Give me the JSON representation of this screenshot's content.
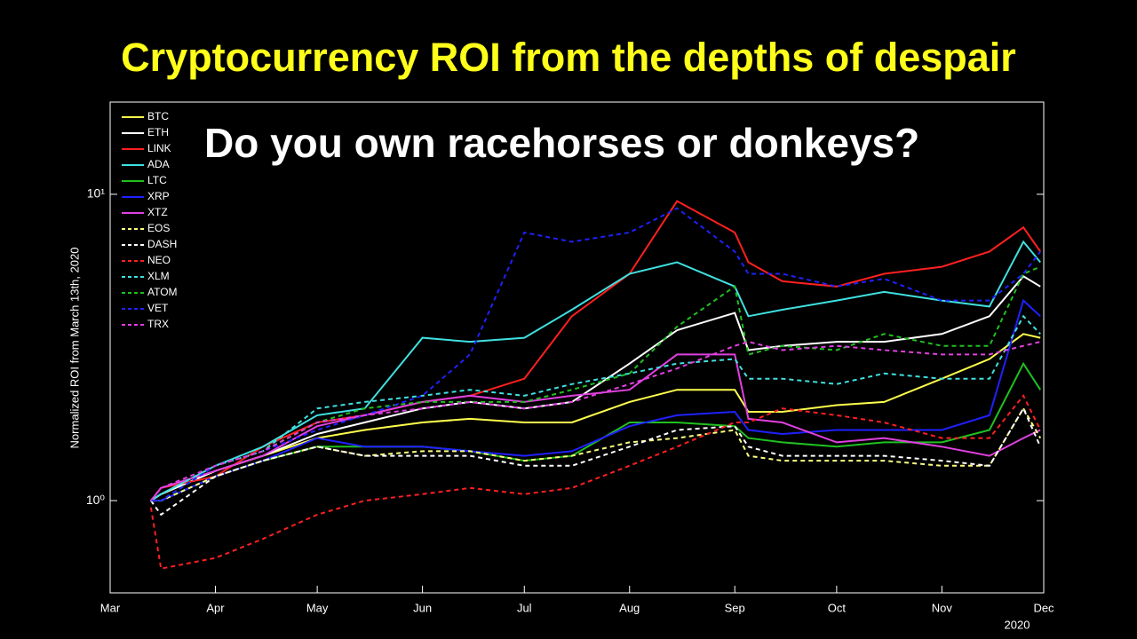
{
  "chart_data": {
    "type": "line",
    "title": "Cryptocurrency ROI from the depths of despair",
    "annotation": "Do you own racehorses or donkeys?",
    "ylabel": "Normalized ROI from March 13th, 2020",
    "xlabel_year": "2020",
    "log_scale": true,
    "legend": "upper left",
    "x": [
      "2020-03-13",
      "2020-03-16",
      "2020-04-01",
      "2020-04-15",
      "2020-05-01",
      "2020-05-15",
      "2020-06-01",
      "2020-06-15",
      "2020-07-01",
      "2020-07-15",
      "2020-08-01",
      "2020-08-15",
      "2020-09-01",
      "2020-09-05",
      "2020-09-15",
      "2020-10-01",
      "2020-10-15",
      "2020-11-01",
      "2020-11-15",
      "2020-11-25",
      "2020-11-30"
    ],
    "xlim": [
      "2020-03-01",
      "2020-12-01"
    ],
    "xticks": [
      {
        "value": "2020-03-01",
        "label": "Mar"
      },
      {
        "value": "2020-04-01",
        "label": "Apr"
      },
      {
        "value": "2020-05-01",
        "label": "May"
      },
      {
        "value": "2020-06-01",
        "label": "Jun"
      },
      {
        "value": "2020-07-01",
        "label": "Jul"
      },
      {
        "value": "2020-08-01",
        "label": "Aug"
      },
      {
        "value": "2020-09-01",
        "label": "Sep"
      },
      {
        "value": "2020-10-01",
        "label": "Oct"
      },
      {
        "value": "2020-11-01",
        "label": "Nov"
      },
      {
        "value": "2020-12-01",
        "label": "Dec"
      }
    ],
    "ylim": [
      0.5,
      20
    ],
    "yticks": [
      {
        "value": 1,
        "label": "10⁰"
      },
      {
        "value": 10,
        "label": "10¹"
      }
    ],
    "series": [
      {
        "name": "BTC",
        "color": "#ffff4d",
        "dashed": false,
        "values": [
          1,
          1.05,
          1.25,
          1.4,
          1.6,
          1.7,
          1.8,
          1.85,
          1.8,
          1.8,
          2.1,
          2.3,
          2.3,
          1.95,
          1.95,
          2.05,
          2.1,
          2.5,
          2.9,
          3.5,
          3.4
        ]
      },
      {
        "name": "ETH",
        "color": "#ffffff",
        "dashed": false,
        "values": [
          1,
          1.05,
          1.25,
          1.4,
          1.65,
          1.8,
          2.0,
          2.1,
          2.0,
          2.1,
          2.8,
          3.6,
          4.1,
          3.1,
          3.2,
          3.3,
          3.3,
          3.5,
          4.0,
          5.4,
          5.0
        ]
      },
      {
        "name": "LINK",
        "color": "#ff2020",
        "dashed": false,
        "values": [
          1,
          1.1,
          1.2,
          1.5,
          1.8,
          1.9,
          2.1,
          2.2,
          2.5,
          4.0,
          5.5,
          9.5,
          7.5,
          6.0,
          5.2,
          5.0,
          5.5,
          5.8,
          6.5,
          7.8,
          6.5
        ]
      },
      {
        "name": "ADA",
        "color": "#40e0e0",
        "dashed": false,
        "values": [
          1,
          1.05,
          1.3,
          1.5,
          1.9,
          2.0,
          3.4,
          3.3,
          3.4,
          4.2,
          5.5,
          6.0,
          5.0,
          4.0,
          4.2,
          4.5,
          4.8,
          4.5,
          4.3,
          7.0,
          6.0
        ]
      },
      {
        "name": "LTC",
        "color": "#20c020",
        "dashed": false,
        "values": [
          1,
          1.0,
          1.2,
          1.35,
          1.5,
          1.5,
          1.5,
          1.45,
          1.35,
          1.4,
          1.8,
          1.8,
          1.75,
          1.6,
          1.55,
          1.5,
          1.55,
          1.55,
          1.7,
          2.8,
          2.3
        ]
      },
      {
        "name": "XRP",
        "color": "#2020ff",
        "dashed": false,
        "values": [
          1,
          1.0,
          1.2,
          1.35,
          1.6,
          1.5,
          1.5,
          1.45,
          1.4,
          1.45,
          1.75,
          1.9,
          1.95,
          1.7,
          1.65,
          1.7,
          1.7,
          1.7,
          1.9,
          4.5,
          4.0
        ]
      },
      {
        "name": "XTZ",
        "color": "#e040e0",
        "dashed": false,
        "values": [
          1,
          1.1,
          1.25,
          1.4,
          1.75,
          1.9,
          2.1,
          2.2,
          2.1,
          2.2,
          2.3,
          3.0,
          3.0,
          1.85,
          1.8,
          1.55,
          1.6,
          1.5,
          1.4,
          1.6,
          1.7
        ]
      },
      {
        "name": "EOS",
        "color": "#ffff80",
        "dashed": true,
        "values": [
          1,
          1.0,
          1.2,
          1.35,
          1.5,
          1.4,
          1.45,
          1.45,
          1.35,
          1.4,
          1.55,
          1.6,
          1.7,
          1.4,
          1.35,
          1.35,
          1.35,
          1.3,
          1.3,
          2.0,
          1.6
        ]
      },
      {
        "name": "DASH",
        "color": "#ffffff",
        "dashed": true,
        "values": [
          1,
          0.9,
          1.2,
          1.35,
          1.5,
          1.4,
          1.4,
          1.4,
          1.3,
          1.3,
          1.5,
          1.7,
          1.75,
          1.5,
          1.4,
          1.4,
          1.4,
          1.35,
          1.3,
          2.0,
          1.5
        ]
      },
      {
        "name": "NEO",
        "color": "#ff2020",
        "dashed": true,
        "values": [
          0.95,
          0.6,
          0.65,
          0.75,
          0.9,
          1.0,
          1.05,
          1.1,
          1.05,
          1.1,
          1.3,
          1.5,
          1.8,
          1.8,
          2.0,
          1.9,
          1.8,
          1.6,
          1.6,
          2.2,
          1.7
        ]
      },
      {
        "name": "XLM",
        "color": "#40e0e0",
        "dashed": true,
        "values": [
          1,
          1.05,
          1.3,
          1.45,
          2.0,
          2.1,
          2.2,
          2.3,
          2.2,
          2.4,
          2.6,
          2.8,
          2.9,
          2.5,
          2.5,
          2.4,
          2.6,
          2.5,
          2.5,
          4.0,
          3.5
        ]
      },
      {
        "name": "ATOM",
        "color": "#20c020",
        "dashed": true,
        "values": [
          1,
          1.0,
          1.3,
          1.45,
          1.8,
          2.0,
          2.1,
          2.1,
          2.1,
          2.3,
          2.6,
          3.7,
          5.0,
          3.0,
          3.2,
          3.1,
          3.5,
          3.2,
          3.2,
          5.5,
          5.8
        ]
      },
      {
        "name": "VET",
        "color": "#2020ff",
        "dashed": true,
        "values": [
          1,
          1.0,
          1.3,
          1.45,
          1.7,
          1.9,
          2.2,
          3.0,
          7.5,
          7.0,
          7.5,
          9.0,
          6.5,
          5.5,
          5.5,
          5.0,
          5.3,
          4.5,
          4.5,
          5.5,
          6.5
        ]
      },
      {
        "name": "TRX",
        "color": "#e040e0",
        "dashed": true,
        "values": [
          1,
          1.1,
          1.3,
          1.45,
          1.8,
          1.9,
          2.0,
          2.1,
          2.0,
          2.1,
          2.4,
          2.7,
          3.2,
          3.3,
          3.1,
          3.2,
          3.1,
          3.0,
          3.0,
          3.2,
          3.3
        ]
      }
    ]
  }
}
